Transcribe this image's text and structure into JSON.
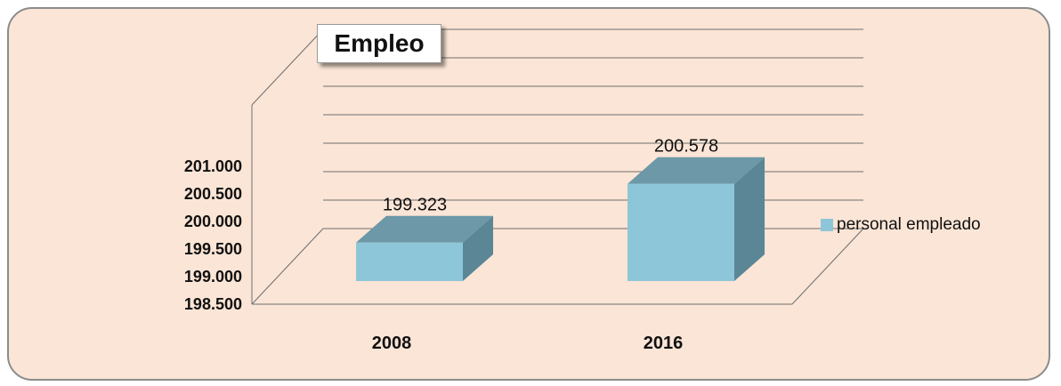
{
  "chart_data": {
    "type": "bar",
    "title": "Empleo",
    "categories": [
      "2008",
      "2016"
    ],
    "series": [
      {
        "name": "personal empleado",
        "values": [
          199.323,
          200.578
        ],
        "color": "#8dc6d8"
      }
    ],
    "data_labels": [
      "199.323",
      "200.578"
    ],
    "y_ticks": [
      "198.500",
      "199.000",
      "199.500",
      "200.000",
      "200.500",
      "201.000"
    ],
    "ylim": [
      198.5,
      201.0
    ],
    "xlabel": "",
    "ylabel": "",
    "legend_position": "right",
    "grid": true,
    "style": "3d-column",
    "colors": {
      "panel_background": "#fbe5d6",
      "bar_front": "#8dc6d8",
      "bar_top": "#6c98a8",
      "bar_side": "#5a8696",
      "gridline": "#6e6e6e"
    }
  }
}
